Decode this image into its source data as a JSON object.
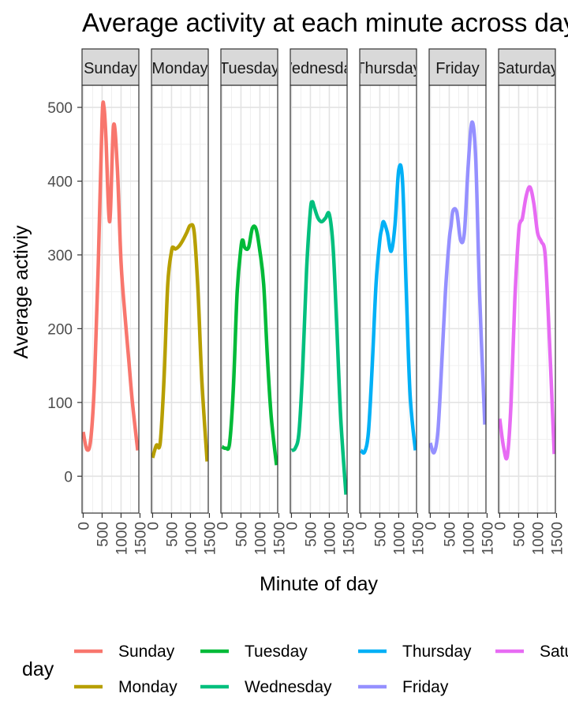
{
  "chart_data": {
    "type": "line",
    "title": "Average activity at each minute across days",
    "xlabel": "Minute of day",
    "ylabel": "Average activiy",
    "xlim": [
      -30,
      1470
    ],
    "ylim": [
      -50,
      530
    ],
    "x_ticks": [
      0,
      500,
      1000,
      1500
    ],
    "y_ticks": [
      0,
      100,
      200,
      300,
      400,
      500
    ],
    "grid": true,
    "legend": {
      "title": "day",
      "placement": "bottom"
    },
    "panels": [
      {
        "name": "Sunday",
        "color": "#F8766D",
        "x": [
          0,
          100,
          200,
          300,
          400,
          500,
          550,
          600,
          700,
          800,
          900,
          1000,
          1100,
          1200,
          1300,
          1440
        ],
        "y": [
          60,
          36,
          50,
          130,
          290,
          485,
          500,
          460,
          345,
          475,
          420,
          290,
          220,
          160,
          100,
          35
        ]
      },
      {
        "name": "Monday",
        "color": "#B79F00",
        "x": [
          0,
          100,
          200,
          300,
          400,
          500,
          550,
          600,
          700,
          800,
          900,
          1000,
          1100,
          1200,
          1300,
          1440
        ],
        "y": [
          25,
          42,
          45,
          130,
          260,
          305,
          310,
          308,
          312,
          320,
          330,
          340,
          330,
          250,
          130,
          20
        ]
      },
      {
        "name": "Tuesday",
        "color": "#00BA38",
        "x": [
          0,
          100,
          200,
          300,
          400,
          500,
          550,
          600,
          700,
          800,
          900,
          1000,
          1100,
          1200,
          1300,
          1440
        ],
        "y": [
          40,
          38,
          45,
          120,
          250,
          310,
          320,
          310,
          310,
          336,
          335,
          305,
          260,
          160,
          80,
          15
        ]
      },
      {
        "name": "Wednesday",
        "color": "#00BF7D",
        "x": [
          0,
          100,
          200,
          300,
          400,
          500,
          550,
          600,
          700,
          800,
          900,
          1000,
          1100,
          1200,
          1300,
          1440
        ],
        "y": [
          35,
          38,
          60,
          150,
          280,
          360,
          372,
          365,
          350,
          345,
          350,
          355,
          310,
          200,
          80,
          -25
        ]
      },
      {
        "name": "Thursday",
        "color": "#00B0F6",
        "x": [
          0,
          100,
          200,
          300,
          400,
          500,
          550,
          600,
          700,
          800,
          900,
          1000,
          1100,
          1200,
          1300,
          1440
        ],
        "y": [
          35,
          33,
          60,
          150,
          260,
          320,
          335,
          345,
          330,
          305,
          340,
          415,
          400,
          250,
          110,
          35
        ]
      },
      {
        "name": "Friday",
        "color": "#9590FF",
        "x": [
          0,
          100,
          200,
          300,
          400,
          500,
          550,
          600,
          700,
          800,
          900,
          1000,
          1100,
          1200,
          1300,
          1440
        ],
        "y": [
          45,
          32,
          60,
          150,
          250,
          320,
          340,
          360,
          358,
          320,
          330,
          420,
          480,
          430,
          250,
          70
        ]
      },
      {
        "name": "Saturday",
        "color": "#E76BF3",
        "x": [
          0,
          100,
          200,
          300,
          400,
          500,
          550,
          600,
          700,
          800,
          900,
          1000,
          1100,
          1200,
          1300,
          1440
        ],
        "y": [
          78,
          40,
          27,
          100,
          240,
          330,
          345,
          350,
          380,
          392,
          370,
          330,
          318,
          300,
          200,
          30
        ]
      }
    ]
  }
}
